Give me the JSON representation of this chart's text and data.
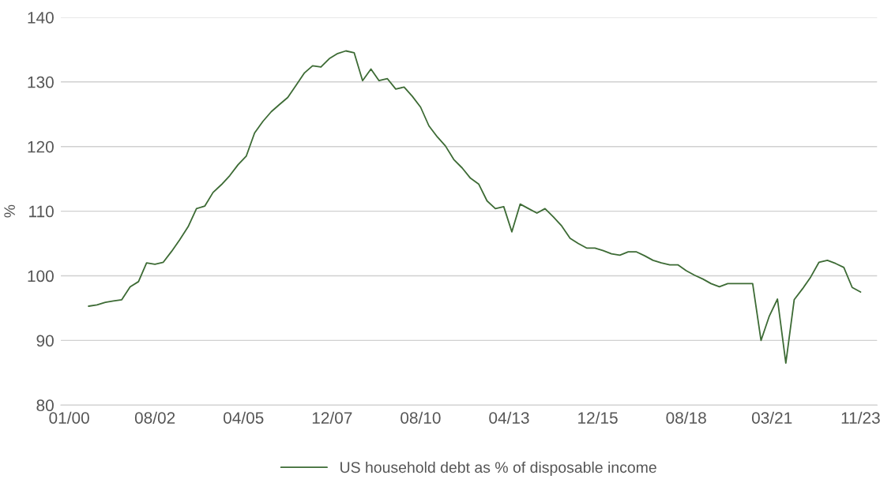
{
  "chart_data": {
    "type": "line",
    "ylabel": "%",
    "x": [
      "2000-08",
      "2000-11",
      "2001-02",
      "2001-05",
      "2001-08",
      "2001-11",
      "2002-02",
      "2002-05",
      "2002-08",
      "2002-11",
      "2003-02",
      "2003-05",
      "2003-08",
      "2003-11",
      "2004-02",
      "2004-05",
      "2004-08",
      "2004-11",
      "2005-02",
      "2005-05",
      "2005-08",
      "2005-11",
      "2006-02",
      "2006-05",
      "2006-08",
      "2006-11",
      "2007-02",
      "2007-05",
      "2007-08",
      "2007-11",
      "2008-02",
      "2008-05",
      "2008-08",
      "2008-11",
      "2009-02",
      "2009-05",
      "2009-08",
      "2009-11",
      "2010-02",
      "2010-05",
      "2010-08",
      "2010-11",
      "2011-02",
      "2011-05",
      "2011-08",
      "2011-11",
      "2012-02",
      "2012-05",
      "2012-08",
      "2012-11",
      "2013-02",
      "2013-05",
      "2013-08",
      "2013-11",
      "2014-02",
      "2014-05",
      "2014-08",
      "2014-11",
      "2015-02",
      "2015-05",
      "2015-08",
      "2015-11",
      "2016-02",
      "2016-05",
      "2016-08",
      "2016-11",
      "2017-02",
      "2017-05",
      "2017-08",
      "2017-11",
      "2018-02",
      "2018-05",
      "2018-08",
      "2018-11",
      "2019-02",
      "2019-05",
      "2019-08",
      "2019-11",
      "2020-02",
      "2020-05",
      "2020-08",
      "2020-11",
      "2021-02",
      "2021-05",
      "2021-08",
      "2021-11",
      "2022-02",
      "2022-05",
      "2022-08",
      "2022-11",
      "2023-02",
      "2023-05",
      "2023-08",
      "2023-11"
    ],
    "series": [
      {
        "name": "US household debt as % of disposable income",
        "color": "#3d6b35",
        "values": [
          95.3,
          95.5,
          95.9,
          96.1,
          96.3,
          98.3,
          99.1,
          102.0,
          101.8,
          102.1,
          103.8,
          105.6,
          107.6,
          110.4,
          110.8,
          112.9,
          114.1,
          115.5,
          117.2,
          118.5,
          122.1,
          123.9,
          125.4,
          126.5,
          127.6,
          129.5,
          131.4,
          132.5,
          132.3,
          133.6,
          134.4,
          134.8,
          134.5,
          130.2,
          132.0,
          130.2,
          130.5,
          128.9,
          129.2,
          127.8,
          126.1,
          123.2,
          121.5,
          120.1,
          118.0,
          116.7,
          115.1,
          114.2,
          111.6,
          110.4,
          110.7,
          106.8,
          111.1,
          110.4,
          109.7,
          110.4,
          109.1,
          107.7,
          105.8,
          105.0,
          104.3,
          104.3,
          103.9,
          103.4,
          103.2,
          103.7,
          103.7,
          103.1,
          102.4,
          102.0,
          101.7,
          101.7,
          100.8,
          100.1,
          99.5,
          98.8,
          98.3,
          98.8,
          98.8,
          98.8,
          98.8,
          90.0,
          93.8,
          96.4,
          86.5,
          96.3,
          98.0,
          99.8,
          102.1,
          102.4,
          101.9,
          101.3,
          98.2,
          97.5
        ]
      }
    ],
    "xlim": [
      "1999-10",
      "2024-05"
    ],
    "xticks": [
      {
        "value": "2000-01",
        "label": "01/00"
      },
      {
        "value": "2002-08",
        "label": "08/02"
      },
      {
        "value": "2005-04",
        "label": "04/05"
      },
      {
        "value": "2007-12",
        "label": "12/07"
      },
      {
        "value": "2010-08",
        "label": "08/10"
      },
      {
        "value": "2013-04",
        "label": "04/13"
      },
      {
        "value": "2015-12",
        "label": "12/15"
      },
      {
        "value": "2018-08",
        "label": "08/18"
      },
      {
        "value": "2021-03",
        "label": "03/21"
      },
      {
        "value": "2023-11",
        "label": "11/23"
      }
    ],
    "ylim": [
      80,
      140
    ],
    "yticks": [
      80,
      90,
      100,
      110,
      120,
      130,
      140
    ],
    "grid": "y",
    "legend": "bottom",
    "marker": "none",
    "line_style": "solid"
  }
}
